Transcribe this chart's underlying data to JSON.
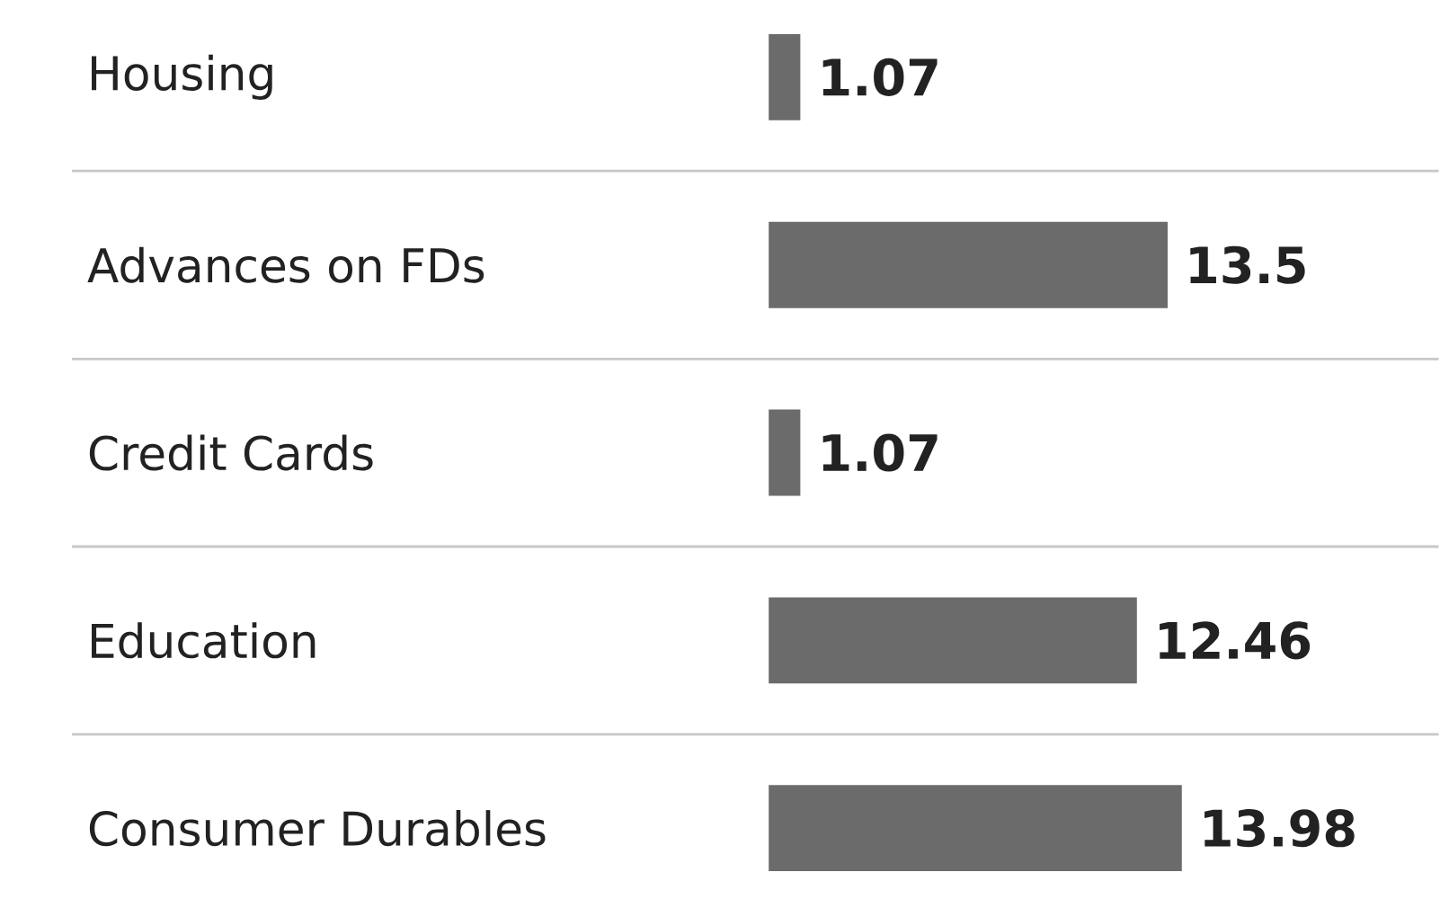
{
  "chart_data": {
    "type": "bar",
    "orientation": "horizontal",
    "categories": [
      "Housing",
      "Advances on FDs",
      "Credit Cards",
      "Education",
      "Consumer Durables"
    ],
    "values": [
      1.07,
      13.5,
      1.07,
      12.46,
      13.98
    ],
    "color": "#6b6b6b",
    "data_labels": true
  }
}
